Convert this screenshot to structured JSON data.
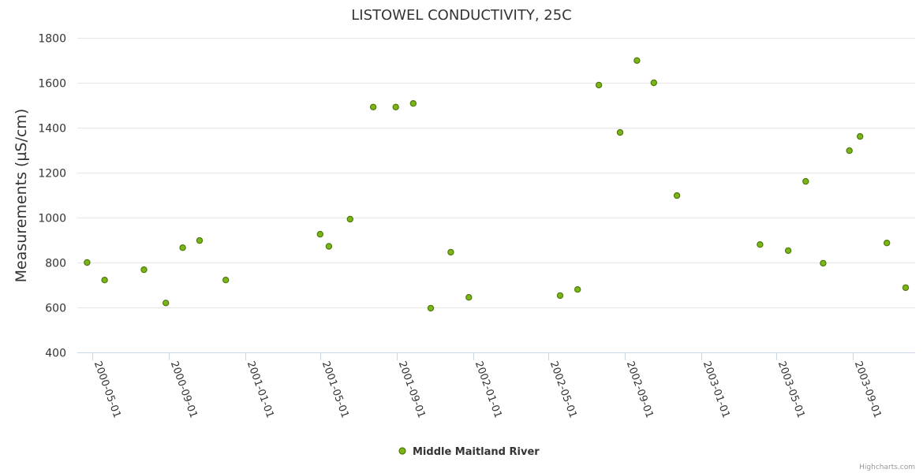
{
  "chart_data": {
    "type": "scatter",
    "title": "LISTOWEL CONDUCTIVITY, 25C",
    "ylabel": "Measurements (µS/cm)",
    "xlabel": "",
    "ylim": [
      400,
      1800
    ],
    "yticks": [
      "400",
      "600",
      "800",
      "1000",
      "1200",
      "1400",
      "1600",
      "1800"
    ],
    "xlim": [
      "2000-04-20",
      "2003-11-24"
    ],
    "xticks": [
      "2000-05-01",
      "2000-09-01",
      "2001-01-01",
      "2001-05-01",
      "2001-09-01",
      "2002-01-01",
      "2002-05-01",
      "2002-09-01",
      "2003-01-01",
      "2003-05-01",
      "2003-09-01"
    ],
    "grid": true,
    "legend_position": "bottom",
    "series": [
      {
        "name": "Middle Maitland River",
        "color": "#7cb518",
        "points": [
          {
            "x": "2000-04-23",
            "y": 800
          },
          {
            "x": "2000-05-21",
            "y": 722
          },
          {
            "x": "2000-07-23",
            "y": 768
          },
          {
            "x": "2000-08-27",
            "y": 620
          },
          {
            "x": "2000-09-23",
            "y": 866
          },
          {
            "x": "2000-10-20",
            "y": 898
          },
          {
            "x": "2000-12-01",
            "y": 722
          },
          {
            "x": "2001-05-01",
            "y": 926
          },
          {
            "x": "2001-05-15",
            "y": 872
          },
          {
            "x": "2001-06-18",
            "y": 993
          },
          {
            "x": "2001-07-25",
            "y": 1492
          },
          {
            "x": "2001-08-30",
            "y": 1492
          },
          {
            "x": "2001-09-27",
            "y": 1508
          },
          {
            "x": "2001-10-25",
            "y": 597
          },
          {
            "x": "2001-11-26",
            "y": 846
          },
          {
            "x": "2001-12-25",
            "y": 645
          },
          {
            "x": "2002-05-20",
            "y": 653
          },
          {
            "x": "2002-06-17",
            "y": 680
          },
          {
            "x": "2002-07-21",
            "y": 1590
          },
          {
            "x": "2002-08-24",
            "y": 1379
          },
          {
            "x": "2002-09-20",
            "y": 1699
          },
          {
            "x": "2002-10-17",
            "y": 1600
          },
          {
            "x": "2002-11-23",
            "y": 1098
          },
          {
            "x": "2003-04-05",
            "y": 880
          },
          {
            "x": "2003-05-20",
            "y": 853
          },
          {
            "x": "2003-06-17",
            "y": 1161
          },
          {
            "x": "2003-07-15",
            "y": 797
          },
          {
            "x": "2003-08-26",
            "y": 1298
          },
          {
            "x": "2003-09-12",
            "y": 1361
          },
          {
            "x": "2003-10-25",
            "y": 887
          },
          {
            "x": "2003-11-24",
            "y": 688
          }
        ]
      }
    ],
    "credits": "Highcharts.com"
  }
}
